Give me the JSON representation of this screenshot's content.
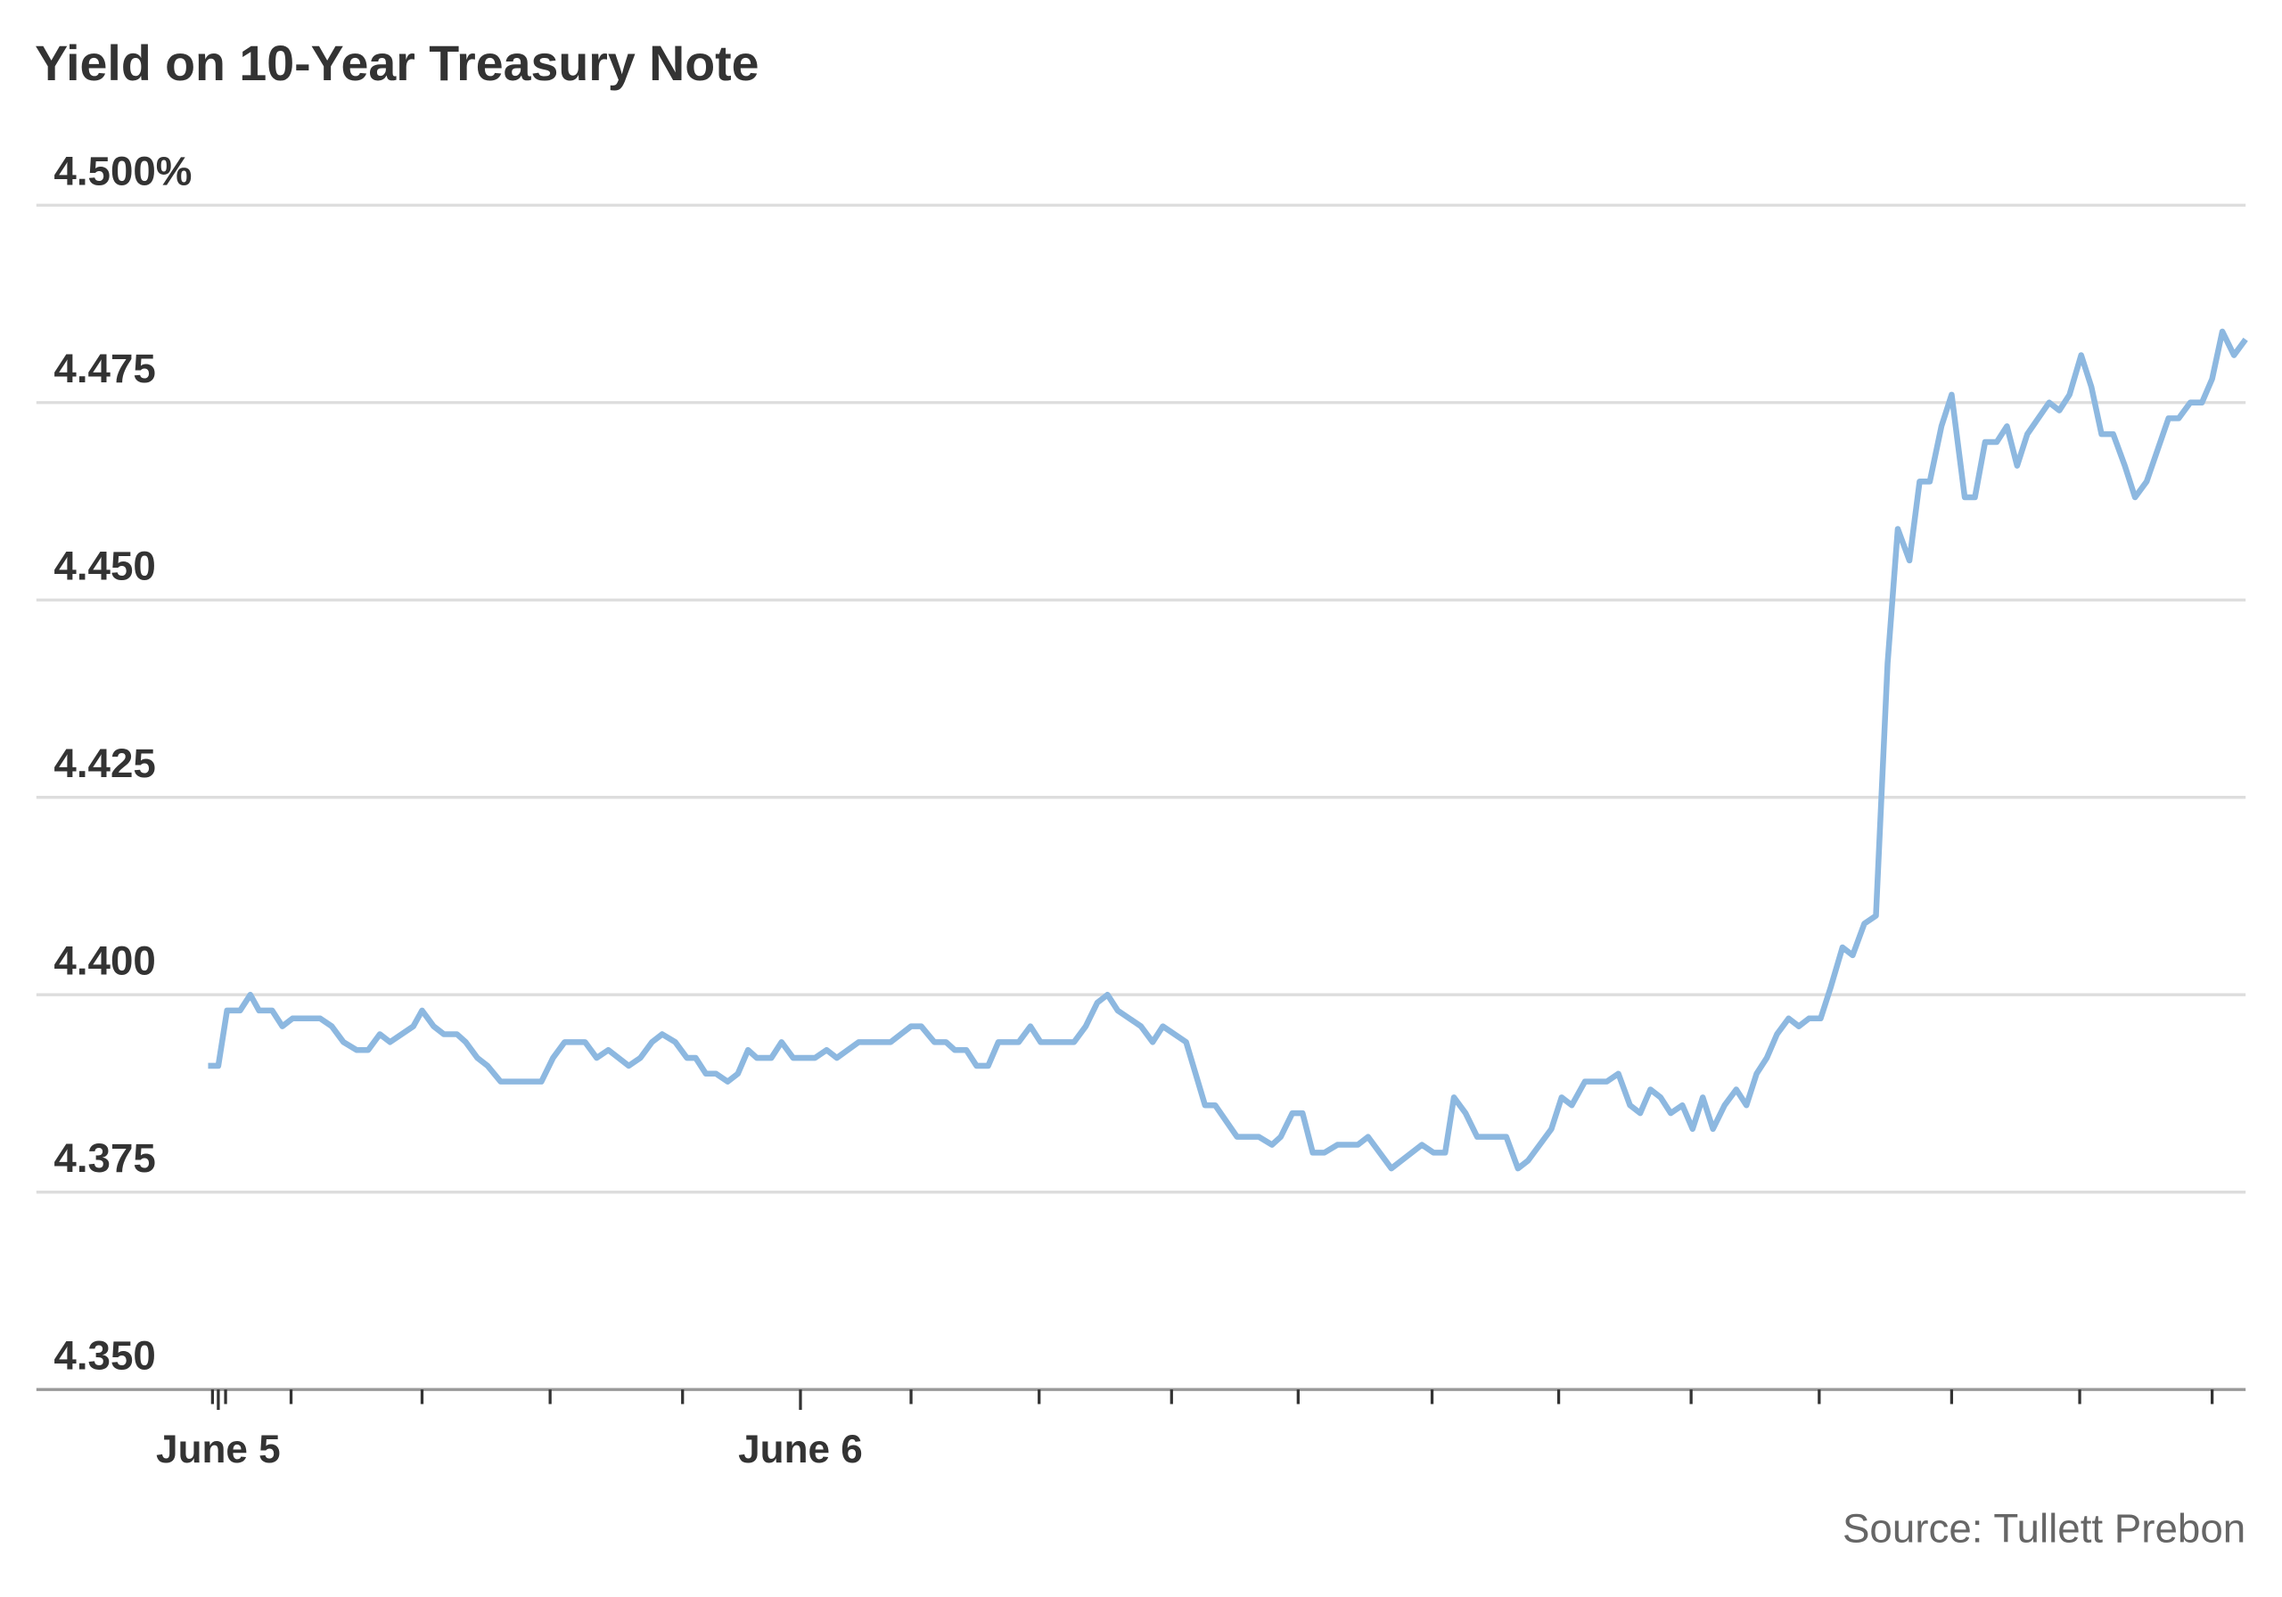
{
  "chart_data": {
    "type": "line",
    "title": "Yield on 10-Year Treasury Note",
    "source": "Source: Tullett Prebon",
    "ylim": [
      4.35,
      4.5
    ],
    "yticks": [
      {
        "value": 4.35,
        "label": "4.350"
      },
      4.375,
      {
        "value": 4.4,
        "label": "4.400"
      },
      4.425,
      {
        "value": 4.45,
        "label": "4.450"
      },
      4.475,
      {
        "value": 4.5,
        "label": "4.500%"
      }
    ],
    "grid": true,
    "xlim": [
      -7.5,
      83.58
    ],
    "xticks": [
      {
        "value": 0,
        "label": "June 5"
      },
      {
        "value": 24,
        "label": "June 6"
      }
    ],
    "xminorticks": [
      -0.24,
      0.3,
      3,
      8.4,
      13.68,
      19.14,
      28.56,
      33.84,
      39.3,
      44.52,
      50.04,
      55.26,
      60.72,
      66,
      71.46,
      76.74,
      82.2
    ],
    "x": [
      -0.42,
      0,
      0.36,
      0.9,
      1.32,
      1.68,
      2.22,
      2.64,
      3.06,
      4.2,
      4.68,
      5.16,
      5.7,
      6.18,
      6.66,
      7.08,
      8.04,
      8.4,
      8.88,
      9.3,
      9.84,
      10.2,
      10.68,
      11.1,
      11.64,
      13.32,
      13.8,
      14.28,
      15.12,
      15.6,
      16.08,
      16.92,
      17.4,
      17.88,
      18.3,
      18.84,
      19.32,
      19.68,
      20.1,
      20.52,
      21,
      21.42,
      21.84,
      22.2,
      22.8,
      23.22,
      23.7,
      24.6,
      25.08,
      25.5,
      26.4,
      27.72,
      28.56,
      28.98,
      29.52,
      30,
      30.36,
      30.84,
      31.26,
      31.74,
      32.16,
      33,
      33.48,
      33.9,
      35.28,
      35.76,
      36.24,
      36.66,
      37.08,
      38.04,
      38.52,
      38.94,
      39.9,
      40.68,
      41.1,
      42,
      42.9,
      43.44,
      43.8,
      44.28,
      44.7,
      45.12,
      45.6,
      46.14,
      46.98,
      47.4,
      48.36,
      49.62,
      50.1,
      50.58,
      50.94,
      51.42,
      51.9,
      53.1,
      53.58,
      54,
      54.96,
      55.38,
      55.8,
      56.34,
      57.24,
      57.72,
      58.2,
      58.62,
      59.04,
      59.46,
      59.88,
      60.36,
      60.78,
      61.2,
      61.62,
      62.1,
      62.58,
      63,
      63.42,
      63.84,
      64.26,
      64.74,
      65.16,
      65.58,
      66.06,
      66.48,
      66.96,
      67.38,
      67.86,
      68.34,
      68.82,
      69.24,
      69.72,
      70.14,
      70.56,
      71.04,
      71.46,
      72,
      72.42,
      72.84,
      73.32,
      73.74,
      74.16,
      74.58,
      75.48,
      75.9,
      76.32,
      76.8,
      77.22,
      77.64,
      78.12,
      78.6,
      79.02,
      79.5,
      80.4,
      80.82,
      81.3,
      81.78,
      82.2,
      82.62,
      83.1,
      83.58
    ],
    "series": [
      {
        "color": "#8db8e0",
        "values": [
          4.391,
          4.391,
          4.398,
          4.398,
          4.4,
          4.398,
          4.398,
          4.396,
          4.397,
          4.397,
          4.396,
          4.394,
          4.393,
          4.393,
          4.395,
          4.394,
          4.396,
          4.398,
          4.396,
          4.395,
          4.395,
          4.394,
          4.392,
          4.391,
          4.389,
          4.389,
          4.392,
          4.394,
          4.394,
          4.392,
          4.393,
          4.391,
          4.392,
          4.394,
          4.395,
          4.394,
          4.392,
          4.392,
          4.39,
          4.39,
          4.389,
          4.39,
          4.393,
          4.392,
          4.392,
          4.394,
          4.392,
          4.392,
          4.393,
          4.392,
          4.394,
          4.394,
          4.396,
          4.396,
          4.394,
          4.394,
          4.393,
          4.393,
          4.391,
          4.391,
          4.394,
          4.394,
          4.396,
          4.394,
          4.394,
          4.396,
          4.399,
          4.4,
          4.398,
          4.396,
          4.394,
          4.396,
          4.394,
          4.386,
          4.386,
          4.382,
          4.382,
          4.381,
          4.382,
          4.385,
          4.385,
          4.38,
          4.38,
          4.381,
          4.381,
          4.382,
          4.378,
          4.381,
          4.38,
          4.38,
          4.387,
          4.385,
          4.382,
          4.382,
          4.378,
          4.379,
          4.383,
          4.387,
          4.386,
          4.389,
          4.389,
          4.39,
          4.386,
          4.385,
          4.388,
          4.387,
          4.385,
          4.386,
          4.383,
          4.387,
          4.383,
          4.386,
          4.388,
          4.386,
          4.39,
          4.392,
          4.395,
          4.397,
          4.396,
          4.397,
          4.397,
          4.401,
          4.406,
          4.405,
          4.409,
          4.41,
          4.442,
          4.459,
          4.455,
          4.465,
          4.465,
          4.472,
          4.476,
          4.463,
          4.463,
          4.47,
          4.47,
          4.472,
          4.467,
          4.471,
          4.475,
          4.474,
          4.476,
          4.481,
          4.477,
          4.471,
          4.471,
          4.467,
          4.463,
          4.465,
          4.473,
          4.473,
          4.475,
          4.475,
          4.478,
          4.484,
          4.481,
          4.483
        ]
      }
    ]
  }
}
